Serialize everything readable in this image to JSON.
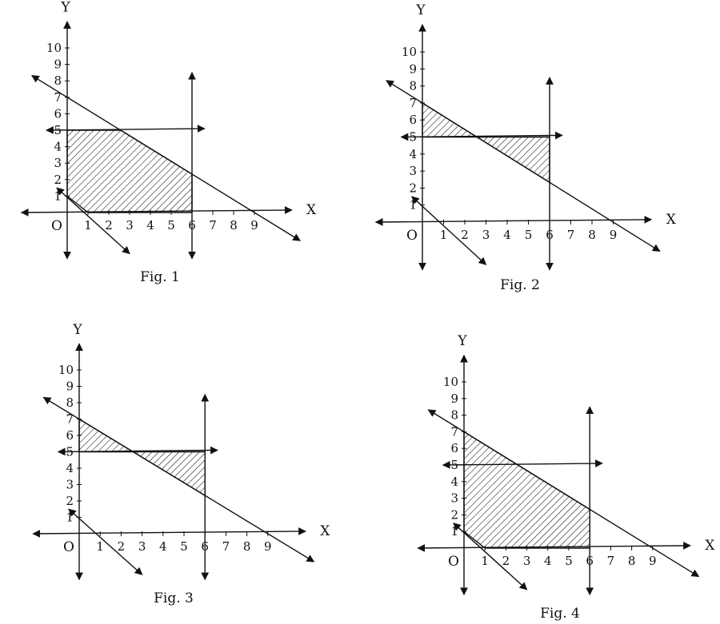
{
  "figures": [
    {
      "id": "fig1",
      "caption": "Fig. 1",
      "x_ticks": [
        "1",
        "2",
        "3",
        "4",
        "5",
        "6",
        "7",
        "8",
        "9"
      ],
      "y_ticks": [
        "1",
        "2",
        "3",
        "4",
        "5",
        "6",
        "7",
        "8",
        "9",
        "10"
      ],
      "x_axis_name": "X",
      "y_axis_name": "Y",
      "origin_label": "O",
      "shaded_region": "feasible polygon: x >= 0, y <= 5, x <= 6, x + y >= 1, below line from (0,7) to (9,0)"
    },
    {
      "id": "fig2",
      "caption": "Fig. 2",
      "x_ticks": [
        "1",
        "2",
        "3",
        "4",
        "5",
        "6",
        "7",
        "8",
        "9"
      ],
      "y_ticks": [
        "1",
        "2",
        "3",
        "4",
        "5",
        "6",
        "7",
        "8",
        "9",
        "10"
      ],
      "x_axis_name": "X",
      "y_axis_name": "Y",
      "origin_label": "O",
      "shaded_region": "two triangles between line y = 5 and the line through (0,7) and (9,0), for 0 <= x <= 6"
    },
    {
      "id": "fig3",
      "caption": "Fig. 3",
      "x_ticks": [
        "1",
        "2",
        "3",
        "4",
        "5",
        "6",
        "7",
        "8",
        "9"
      ],
      "y_ticks": [
        "1",
        "2",
        "3",
        "4",
        "5",
        "6",
        "7",
        "8",
        "9",
        "10"
      ],
      "x_axis_name": "X",
      "y_axis_name": "Y",
      "origin_label": "O",
      "shaded_region": "two triangles between line y = 5 and the line through (0,7) and (9,0), for 0 <= x <= 6"
    },
    {
      "id": "fig4",
      "caption": "Fig. 4",
      "x_ticks": [
        "1",
        "2",
        "3",
        "4",
        "5",
        "6",
        "7",
        "8",
        "9"
      ],
      "y_ticks": [
        "1",
        "2",
        "3",
        "4",
        "5",
        "6",
        "7",
        "8",
        "9",
        "10"
      ],
      "x_axis_name": "X",
      "y_axis_name": "Y",
      "origin_label": "O",
      "shaded_region": "polygon x >= 0, x <= 6, y <= 7 - 7x/9, x + y >= 1 (including area above y = 5)"
    }
  ],
  "lines": {
    "boundary_line": {
      "x_intercept": 9,
      "y_intercept": 7
    },
    "lower_line": {
      "x_intercept": 1,
      "y_intercept": 1
    },
    "horizontal_line_y": 5,
    "vertical_line_x": 6
  }
}
